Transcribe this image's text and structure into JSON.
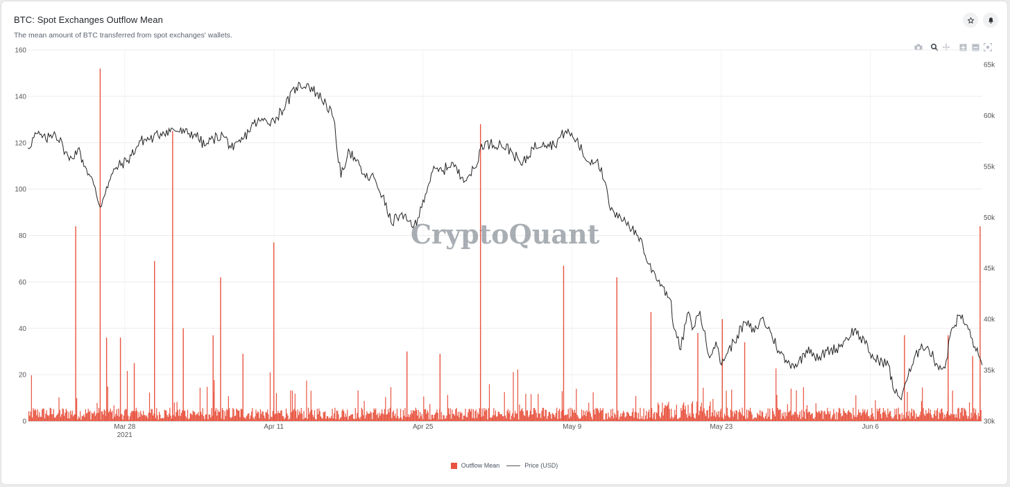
{
  "header": {
    "title": "BTC: Spot Exchanges Outflow Mean",
    "subtitle": "The mean amount of BTC transferred from spot exchanges' wallets."
  },
  "toolbar_icons": [
    "camera-icon",
    "zoom-icon",
    "pan-icon",
    "zoom-in-icon",
    "zoom-out-icon",
    "reset-axes-icon"
  ],
  "watermark": "CryptoQuant",
  "colors": {
    "outflow": "#e8533f",
    "price": "#222222",
    "watermark": "#9aa0a6"
  },
  "chart_data": {
    "type": "bar",
    "x_ticks": [
      {
        "label": "Mar 28",
        "sublabel": "2021",
        "day": 7
      },
      {
        "label": "Apr 11",
        "sublabel": "",
        "day": 21
      },
      {
        "label": "Apr 25",
        "sublabel": "",
        "day": 35
      },
      {
        "label": "May 9",
        "sublabel": "",
        "day": 49
      },
      {
        "label": "May 23",
        "sublabel": "",
        "day": 63
      },
      {
        "label": "Jun 6",
        "sublabel": "",
        "day": 77
      }
    ],
    "x_range_days": [
      -2.1,
      87.5
    ],
    "y_left": {
      "range": [
        0,
        160
      ],
      "ticks": [
        0,
        20,
        40,
        60,
        80,
        100,
        120,
        140,
        160
      ]
    },
    "y_right": {
      "range": [
        30000,
        65000
      ],
      "ticks": [
        30000,
        35000,
        40000,
        45000,
        50000,
        55000,
        60000,
        65000
      ],
      "tick_labels": [
        "30k",
        "35k",
        "40k",
        "45k",
        "50k",
        "55k",
        "60k",
        "65k"
      ]
    },
    "series": [
      {
        "name": "Outflow Mean",
        "type": "bar",
        "axis": "left",
        "spikes": [
          {
            "day": 2.4,
            "value": 84
          },
          {
            "day": 4.7,
            "value": 152
          },
          {
            "day": 5.3,
            "value": 36
          },
          {
            "day": 6.6,
            "value": 36
          },
          {
            "day": 7.9,
            "value": 25
          },
          {
            "day": 9.8,
            "value": 69
          },
          {
            "day": 11.5,
            "value": 125
          },
          {
            "day": 12.5,
            "value": 40
          },
          {
            "day": 15.3,
            "value": 37
          },
          {
            "day": 16.0,
            "value": 62
          },
          {
            "day": 18.1,
            "value": 29
          },
          {
            "day": 21.0,
            "value": 77
          },
          {
            "day": 33.5,
            "value": 30
          },
          {
            "day": 36.6,
            "value": 29
          },
          {
            "day": 40.4,
            "value": 128
          },
          {
            "day": 48.2,
            "value": 67
          },
          {
            "day": 53.2,
            "value": 62
          },
          {
            "day": 56.4,
            "value": 47
          },
          {
            "day": 60.8,
            "value": 38
          },
          {
            "day": 63.1,
            "value": 44
          },
          {
            "day": 65.2,
            "value": 34
          },
          {
            "day": 80.2,
            "value": 37
          },
          {
            "day": 84.3,
            "value": 37
          },
          {
            "day": 86.6,
            "value": 28
          },
          {
            "day": 87.3,
            "value": 84
          }
        ],
        "baseline_typical": 4
      },
      {
        "name": "Price (USD)",
        "type": "line",
        "axis": "right",
        "points": [
          [
            -2.1,
            56800
          ],
          [
            -1.3,
            58200
          ],
          [
            -0.4,
            57600
          ],
          [
            0.4,
            58400
          ],
          [
            1.2,
            57000
          ],
          [
            1.8,
            55600
          ],
          [
            2.6,
            56700
          ],
          [
            3.3,
            55000
          ],
          [
            4.1,
            53200
          ],
          [
            4.7,
            51000
          ],
          [
            5.3,
            53000
          ],
          [
            6.2,
            54900
          ],
          [
            7.3,
            55600
          ],
          [
            8.5,
            57500
          ],
          [
            9.7,
            57800
          ],
          [
            10.6,
            58400
          ],
          [
            11.6,
            58600
          ],
          [
            12.6,
            58300
          ],
          [
            13.6,
            58200
          ],
          [
            14.5,
            57000
          ],
          [
            15.3,
            57700
          ],
          [
            16.2,
            58100
          ],
          [
            17.2,
            56600
          ],
          [
            18.2,
            57800
          ],
          [
            19.1,
            59200
          ],
          [
            20.0,
            59500
          ],
          [
            21.0,
            59500
          ],
          [
            22.1,
            61000
          ],
          [
            23.1,
            62800
          ],
          [
            24.1,
            63100
          ],
          [
            25.0,
            62200
          ],
          [
            25.9,
            61200
          ],
          [
            26.6,
            59700
          ],
          [
            27.3,
            53900
          ],
          [
            28.0,
            56700
          ],
          [
            28.7,
            55500
          ],
          [
            29.6,
            53900
          ],
          [
            30.4,
            53900
          ],
          [
            31.2,
            52100
          ],
          [
            32.0,
            49500
          ],
          [
            32.8,
            50200
          ],
          [
            33.6,
            49600
          ],
          [
            34.4,
            49200
          ],
          [
            35.0,
            51700
          ],
          [
            35.9,
            54500
          ],
          [
            36.9,
            54600
          ],
          [
            37.7,
            55400
          ],
          [
            38.6,
            53900
          ],
          [
            39.4,
            54200
          ],
          [
            40.0,
            54900
          ],
          [
            40.5,
            57200
          ],
          [
            41.3,
            57200
          ],
          [
            42.3,
            57200
          ],
          [
            43.3,
            56500
          ],
          [
            44.3,
            55100
          ],
          [
            45.3,
            56800
          ],
          [
            46.3,
            57400
          ],
          [
            47.3,
            57100
          ],
          [
            48.4,
            58500
          ],
          [
            49.4,
            57600
          ],
          [
            50.4,
            55500
          ],
          [
            51.4,
            55700
          ],
          [
            52.0,
            53600
          ],
          [
            52.6,
            50700
          ],
          [
            53.3,
            49900
          ],
          [
            53.9,
            50000
          ],
          [
            54.6,
            48800
          ],
          [
            55.4,
            48000
          ],
          [
            56.1,
            45500
          ],
          [
            56.8,
            44400
          ],
          [
            57.4,
            43400
          ],
          [
            58.2,
            42000
          ],
          [
            58.6,
            39000
          ],
          [
            59.2,
            37000
          ],
          [
            59.8,
            40500
          ],
          [
            60.4,
            39200
          ],
          [
            61.0,
            40800
          ],
          [
            61.8,
            36500
          ],
          [
            62.5,
            37800
          ],
          [
            62.9,
            35700
          ],
          [
            63.6,
            36700
          ],
          [
            64.5,
            38400
          ],
          [
            65.3,
            39700
          ],
          [
            66.1,
            38700
          ],
          [
            66.8,
            40100
          ],
          [
            67.6,
            38800
          ],
          [
            68.4,
            36900
          ],
          [
            69.2,
            35700
          ],
          [
            70.2,
            35600
          ],
          [
            71.2,
            37300
          ],
          [
            72.1,
            36000
          ],
          [
            72.9,
            36900
          ],
          [
            73.8,
            37100
          ],
          [
            74.6,
            37900
          ],
          [
            75.5,
            39000
          ],
          [
            76.5,
            37600
          ],
          [
            77.3,
            36100
          ],
          [
            78.1,
            35900
          ],
          [
            78.7,
            35500
          ],
          [
            79.2,
            33000
          ],
          [
            79.8,
            32200
          ],
          [
            80.3,
            33800
          ],
          [
            81.0,
            35600
          ],
          [
            81.8,
            37600
          ],
          [
            82.5,
            37000
          ],
          [
            83.3,
            35500
          ],
          [
            84.0,
            35200
          ],
          [
            84.6,
            39000
          ],
          [
            85.4,
            40400
          ],
          [
            86.2,
            39000
          ],
          [
            86.8,
            37300
          ],
          [
            87.5,
            35500
          ]
        ]
      }
    ],
    "legend_position": "bottom-center",
    "grid": true
  }
}
